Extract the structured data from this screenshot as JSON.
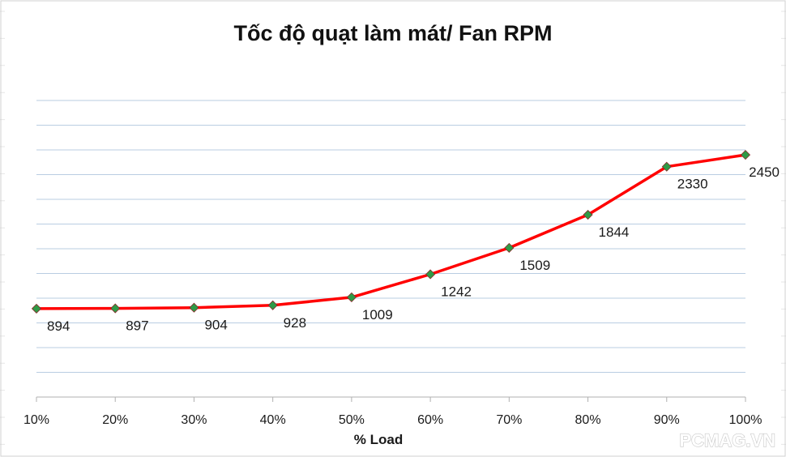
{
  "watermark": "PCMAG.VN",
  "chart_data": {
    "type": "line",
    "title": "Tốc độ quạt làm mát/ Fan RPM",
    "xlabel": "% Load",
    "ylabel": "",
    "categories": [
      "10%",
      "20%",
      "30%",
      "40%",
      "50%",
      "60%",
      "70%",
      "80%",
      "90%",
      "100%"
    ],
    "series": [
      {
        "values": [
          894,
          897,
          904,
          928,
          1009,
          1242,
          1509,
          1844,
          2330,
          2450
        ]
      }
    ],
    "data_labels": [
      "894",
      "897",
      "904",
      "928",
      "1009",
      "1242",
      "1509",
      "1844",
      "2330",
      "2450"
    ],
    "ylim": [
      0,
      3000
    ],
    "y_axis_visible": false,
    "grid": true,
    "legend": "none",
    "line_color": "#ff0000",
    "marker_color": "#2e9a46",
    "gridline_color": "#b9cde2"
  }
}
